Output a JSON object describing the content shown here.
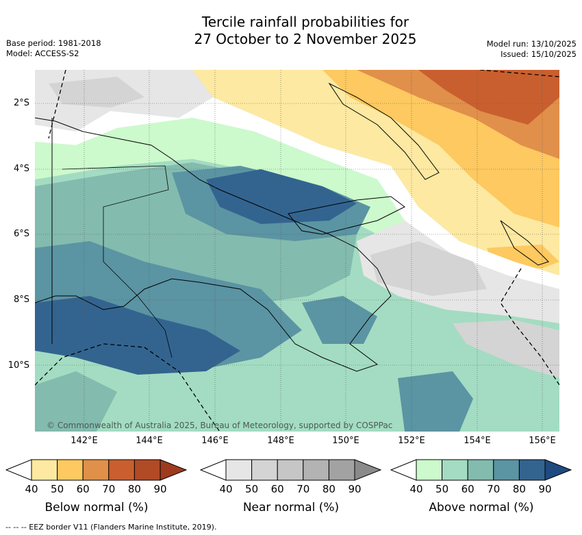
{
  "title_line1": "Tercile rainfall probabilities for",
  "title_line2": "27 October to 2 November 2025",
  "base_period": "Base period: 1981-2018",
  "model": "Model: ACCESS-S2",
  "model_run": "Model run: 13/10/2025",
  "issued": "Issued: 15/10/2025",
  "lat_labels": [
    "2°S",
    "4°S",
    "6°S",
    "8°S",
    "10°S"
  ],
  "lon_labels": [
    "142°E",
    "144°E",
    "146°E",
    "148°E",
    "150°E",
    "152°E",
    "154°E",
    "156°E"
  ],
  "credit": "© Commonwealth of Australia 2025, Bureau of Meteorology, supported by COSPPac",
  "colorbars": [
    {
      "title": "Below normal (%)",
      "ticks": [
        "40",
        "50",
        "60",
        "70",
        "80",
        "90"
      ],
      "colors": [
        "#ffffff",
        "#fde9a1",
        "#fdc960",
        "#e0904a",
        "#c95f2e",
        "#b14a26",
        "#9e3a1d"
      ]
    },
    {
      "title": "Near normal (%)",
      "ticks": [
        "40",
        "50",
        "60",
        "70",
        "80",
        "90"
      ],
      "colors": [
        "#ffffff",
        "#e6e6e6",
        "#d4d4d4",
        "#c6c6c6",
        "#b3b3b3",
        "#a2a2a2",
        "#8a8a8a"
      ]
    },
    {
      "title": "Above normal (%)",
      "ticks": [
        "40",
        "50",
        "60",
        "70",
        "80",
        "90"
      ],
      "colors": [
        "#ffffff",
        "#ccfacc",
        "#a3dcc2",
        "#83bbae",
        "#5b94a3",
        "#33648f",
        "#1e4a80"
      ]
    }
  ],
  "footer": "-- -- -- EEZ border V11 (Flanders Marine Institute, 2019)."
}
